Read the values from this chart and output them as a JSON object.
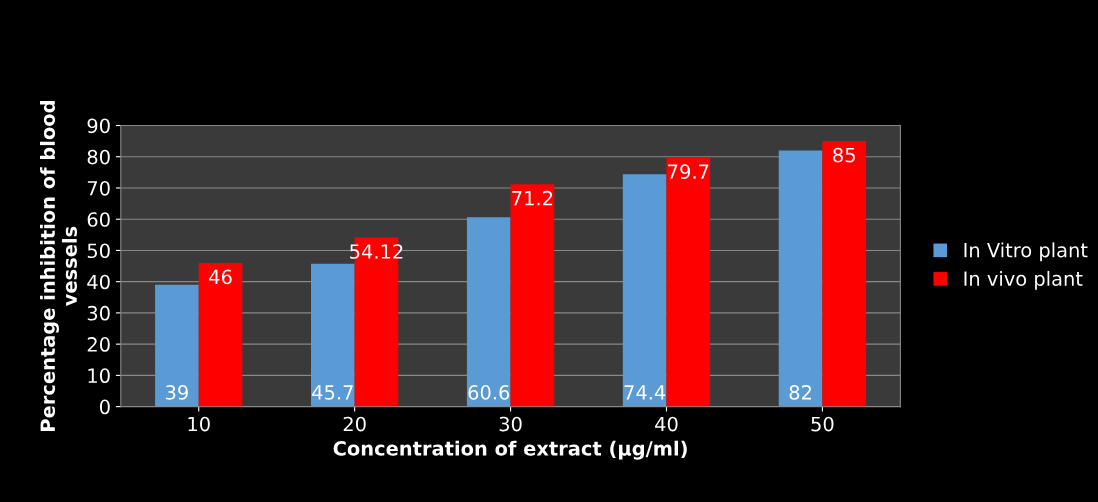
{
  "chart_data": {
    "type": "bar",
    "xlabel": "Concentration of extract (µg/ml)",
    "ylabel": "Percentage inhibition of blood\nvessels",
    "categories": [
      "10",
      "20",
      "30",
      "40",
      "50"
    ],
    "series": [
      {
        "name": "In Vitro plant",
        "color": "#5b9bd5",
        "values": [
          39,
          45.7,
          60.6,
          74.4,
          82
        ]
      },
      {
        "name": "In vivo plant",
        "color": "#ff0000",
        "values": [
          46,
          54.12,
          71.2,
          79.7,
          85
        ]
      }
    ],
    "ylim": [
      0,
      90
    ],
    "yticks": [
      0,
      10,
      20,
      30,
      40,
      50,
      60,
      70,
      80,
      90
    ],
    "grid": "y",
    "legend": "right",
    "data_labels": true
  }
}
